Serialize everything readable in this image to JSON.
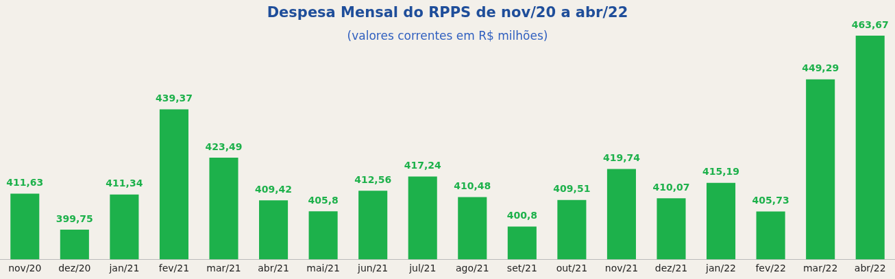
{
  "chart_data": {
    "type": "bar",
    "title": "Despesa Mensal do RPPS de nov/20 a abr/22",
    "subtitle": "(valores correntes em R$ milhões)",
    "categories": [
      "nov/20",
      "dez/20",
      "jan/21",
      "fev/21",
      "mar/21",
      "abr/21",
      "mai/21",
      "jun/21",
      "jul/21",
      "ago/21",
      "set/21",
      "out/21",
      "nov/21",
      "dez/21",
      "jan/22",
      "fev/22",
      "mar/22",
      "abr/22"
    ],
    "values": [
      411.63,
      399.75,
      411.34,
      439.37,
      423.49,
      409.42,
      405.8,
      412.56,
      417.24,
      410.48,
      400.8,
      409.51,
      419.74,
      410.07,
      415.19,
      405.73,
      449.29,
      463.67
    ],
    "value_labels": [
      "411,63",
      "399,75",
      "411,34",
      "439,37",
      "423,49",
      "409,42",
      "405,8",
      "412,56",
      "417,24",
      "410,48",
      "400,8",
      "409,51",
      "419,74",
      "410,07",
      "415,19",
      "405,73",
      "449,29",
      "463,67"
    ],
    "color": "#1db14b",
    "grid": false,
    "legend": false
  }
}
